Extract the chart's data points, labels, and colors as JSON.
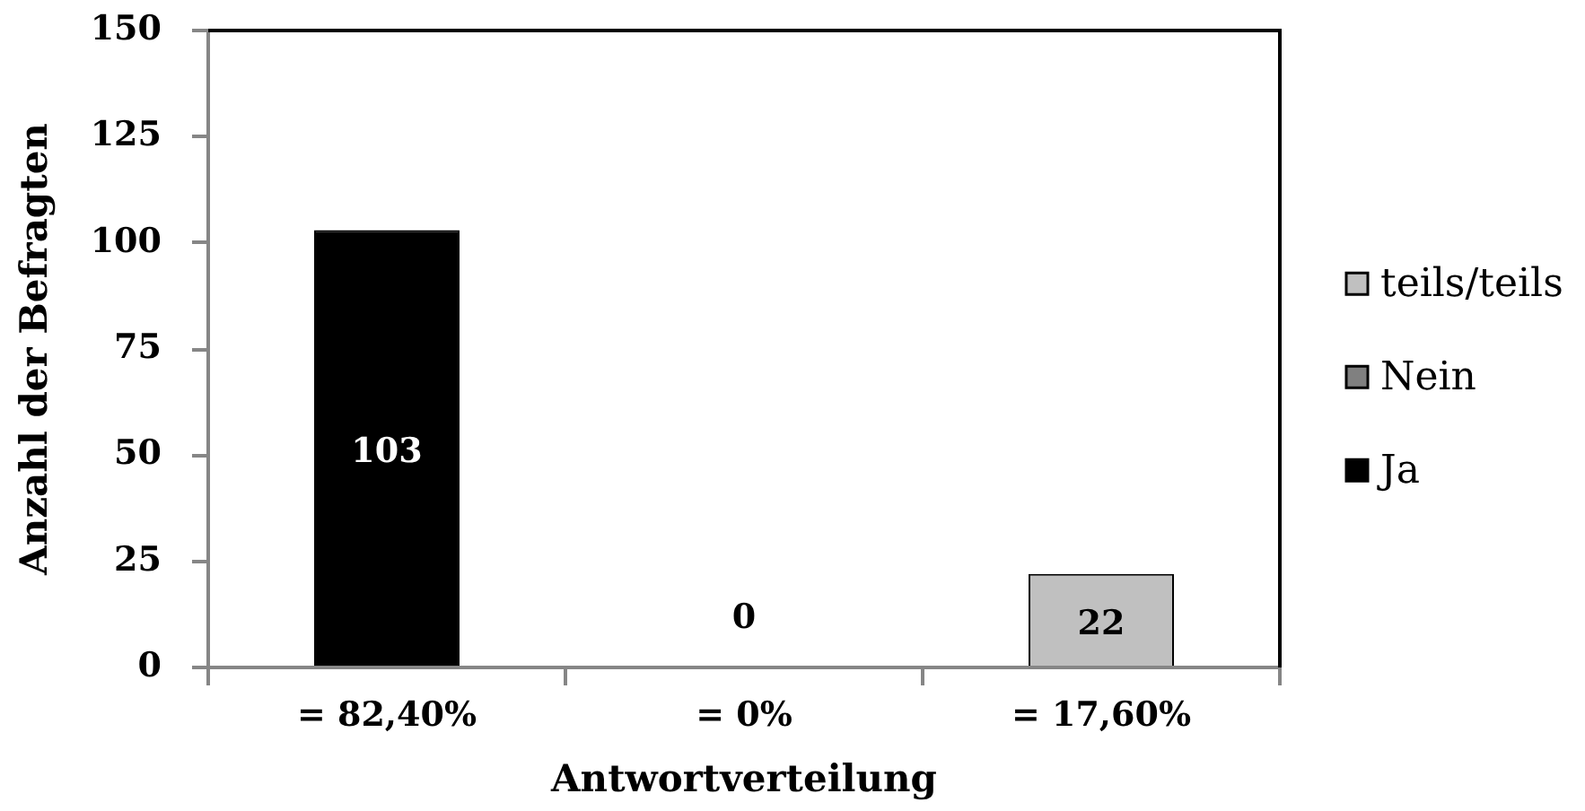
{
  "chart_data": {
    "type": "bar",
    "xlabel": "Antwortverteilung",
    "ylabel": "Anzahl der Befragten",
    "categories": [
      "= 82,40%",
      "= 0%",
      "= 17,60%"
    ],
    "series": [
      {
        "name": "Ja",
        "color": "#000000",
        "values": [
          103,
          null,
          null
        ]
      },
      {
        "name": "Nein",
        "color": "#808080",
        "values": [
          null,
          0,
          null
        ]
      },
      {
        "name": "teils/teils",
        "color": "#c0c0c0",
        "values": [
          null,
          null,
          22
        ]
      }
    ],
    "stacked": true,
    "ylim": [
      0,
      150
    ],
    "yticks": [
      0,
      25,
      50,
      75,
      100,
      125,
      150
    ],
    "data_labels": true,
    "legend": "right"
  }
}
